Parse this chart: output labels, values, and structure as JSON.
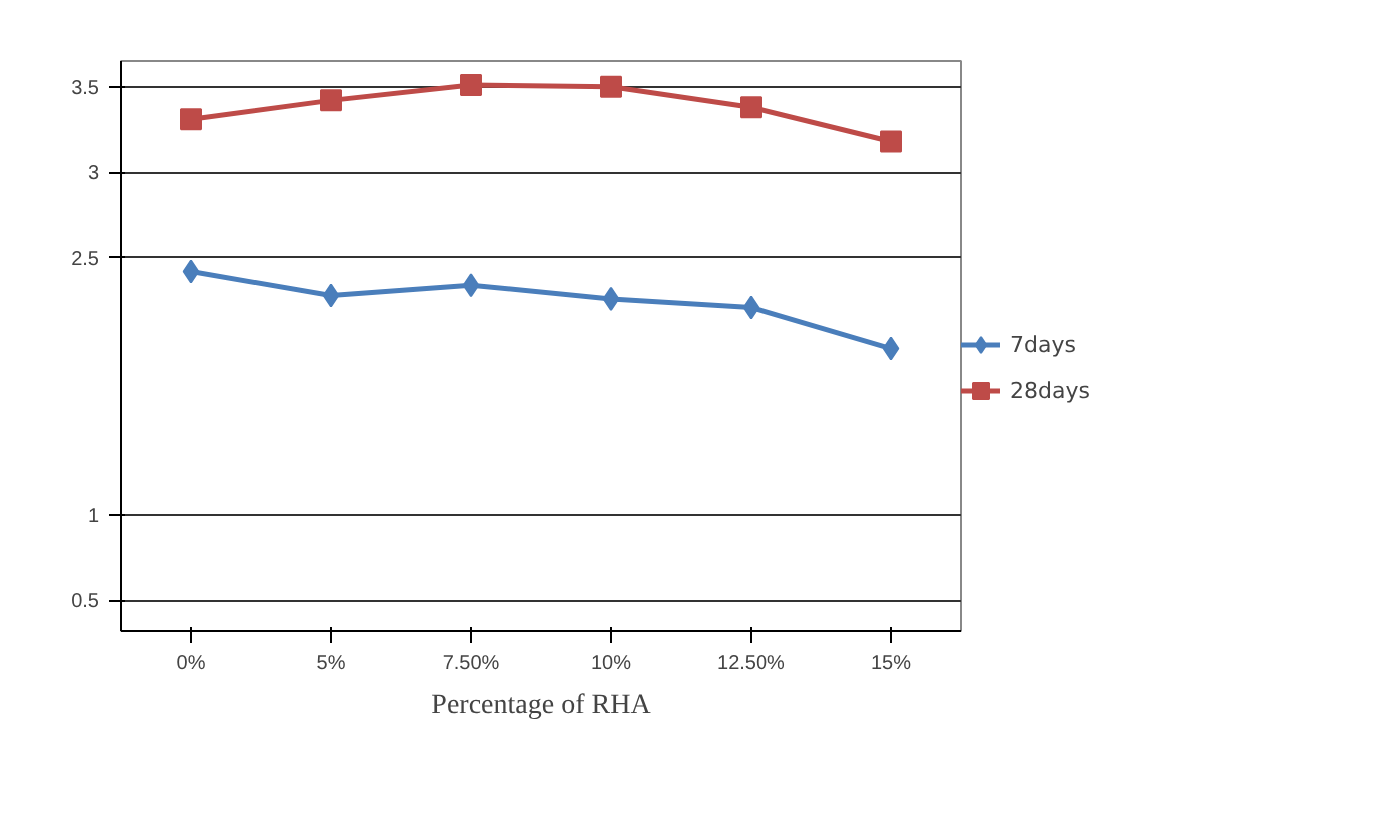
{
  "chart_data": {
    "type": "line",
    "xlabel": "Percentage of RHA",
    "categories": [
      "0%",
      "5%",
      "7.50%",
      "10%",
      "12.50%",
      "15%"
    ],
    "series": [
      {
        "name": "7days",
        "color": "#4a7ebb",
        "marker": "diamond",
        "values": [
          2.42,
          2.28,
          2.34,
          2.26,
          2.21,
          1.97
        ]
      },
      {
        "name": "28days",
        "color": "#be4b48",
        "marker": "square",
        "values": [
          3.31,
          3.42,
          3.51,
          3.5,
          3.38,
          3.18
        ]
      }
    ],
    "ylim": [
      0.32,
      3.65
    ],
    "yticks": [
      0.5,
      1,
      2.5,
      3,
      3.5
    ],
    "grid": "y",
    "legend": "right",
    "line_style": "solid"
  }
}
